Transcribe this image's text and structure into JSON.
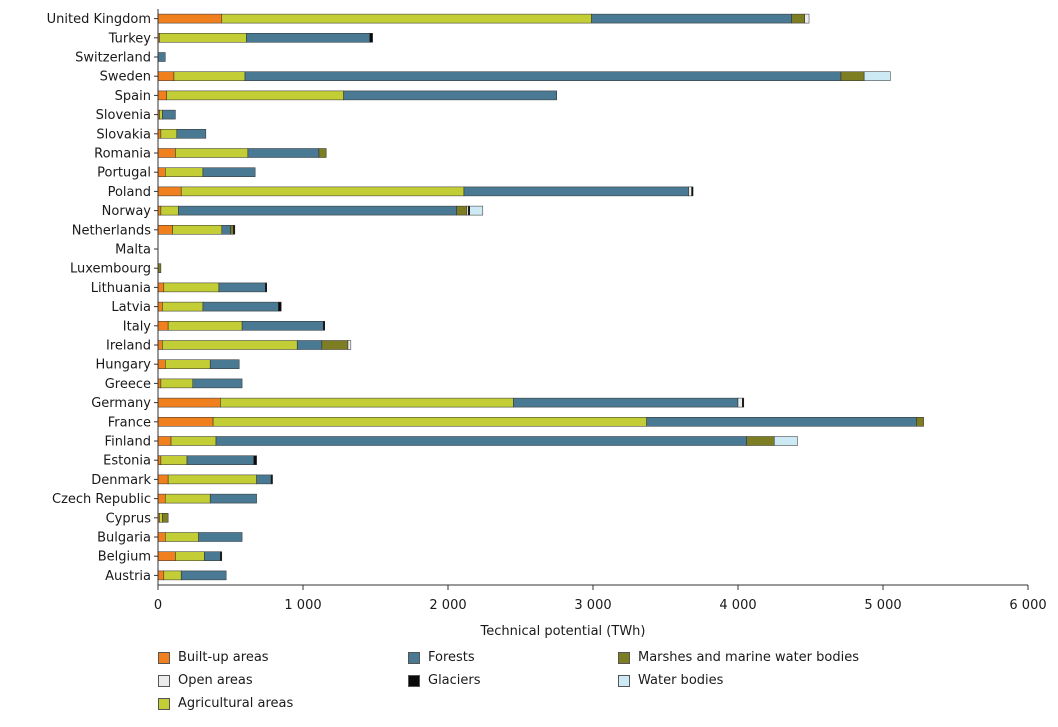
{
  "chart_data": {
    "type": "bar",
    "orientation": "horizontal",
    "stacked": true,
    "title": "",
    "xlabel": "Technical potential (TWh)",
    "ylabel": "",
    "xlim": [
      0,
      6000
    ],
    "xticks": [
      0,
      1000,
      2000,
      3000,
      4000,
      5000,
      6000
    ],
    "xtick_labels": [
      "0",
      "1 000",
      "2 000",
      "3 000",
      "4 000",
      "5 000",
      "6 000"
    ],
    "grid": false,
    "legend_position": "bottom",
    "categories": [
      "United Kingdom",
      "Turkey",
      "Switzerland",
      "Sweden",
      "Spain",
      "Slovenia",
      "Slovakia",
      "Romania",
      "Portugal",
      "Poland",
      "Norway",
      "Netherlands",
      "Malta",
      "Luxembourg",
      "Lithuania",
      "Latvia",
      "Italy",
      "Ireland",
      "Hungary",
      "Greece",
      "Germany",
      "France",
      "Finland",
      "Estonia",
      "Denmark",
      "Czech Republic",
      "Cyprus",
      "Bulgaria",
      "Belgium",
      "Austria"
    ],
    "series": [
      {
        "name": "Built-up areas",
        "color": "#f07f1d",
        "values": [
          440,
          10,
          0,
          110,
          60,
          10,
          20,
          120,
          50,
          160,
          20,
          100,
          0,
          0,
          40,
          30,
          70,
          30,
          50,
          20,
          430,
          380,
          90,
          20,
          70,
          50,
          10,
          50,
          120,
          40
        ]
      },
      {
        "name": "Agricultural areas",
        "color": "#c3cd35",
        "values": [
          2550,
          600,
          0,
          490,
          1220,
          20,
          110,
          500,
          260,
          1950,
          120,
          340,
          0,
          0,
          380,
          280,
          510,
          930,
          310,
          220,
          2020,
          2990,
          310,
          180,
          610,
          310,
          20,
          230,
          200,
          120
        ]
      },
      {
        "name": "Forests",
        "color": "#4a7a93",
        "values": [
          1380,
          850,
          50,
          4110,
          1470,
          90,
          200,
          490,
          360,
          1550,
          1920,
          60,
          0,
          0,
          320,
          520,
          560,
          170,
          200,
          340,
          1550,
          1860,
          3660,
          460,
          100,
          320,
          0,
          300,
          110,
          310
        ]
      },
      {
        "name": "Marshes and marine water bodies",
        "color": "#7d7d24",
        "values": [
          90,
          0,
          0,
          160,
          0,
          0,
          0,
          50,
          0,
          0,
          70,
          20,
          0,
          20,
          0,
          0,
          0,
          180,
          0,
          0,
          0,
          50,
          190,
          0,
          0,
          0,
          40,
          0,
          0,
          0
        ]
      },
      {
        "name": "Open areas",
        "color": "#ececec",
        "values": [
          30,
          0,
          0,
          0,
          0,
          0,
          0,
          0,
          0,
          20,
          10,
          0,
          0,
          0,
          0,
          0,
          0,
          20,
          0,
          0,
          30,
          0,
          0,
          0,
          0,
          0,
          0,
          0,
          0,
          0
        ]
      },
      {
        "name": "Glaciers",
        "color": "#0a0a0a",
        "values": [
          0,
          20,
          0,
          0,
          0,
          0,
          0,
          0,
          0,
          10,
          10,
          10,
          0,
          0,
          10,
          20,
          10,
          0,
          0,
          0,
          10,
          0,
          0,
          20,
          10,
          0,
          0,
          0,
          10,
          0
        ]
      },
      {
        "name": "Water bodies",
        "color": "#cde9f3",
        "values": [
          0,
          0,
          0,
          180,
          0,
          0,
          0,
          0,
          0,
          0,
          90,
          0,
          0,
          0,
          0,
          0,
          0,
          0,
          0,
          0,
          0,
          0,
          160,
          0,
          0,
          0,
          0,
          0,
          0,
          0
        ]
      }
    ],
    "legend": [
      {
        "name": "Built-up areas",
        "color": "#f07f1d"
      },
      {
        "name": "Forests",
        "color": "#4a7a93"
      },
      {
        "name": "Marshes and marine water bodies",
        "color": "#7d7d24"
      },
      {
        "name": "Open areas",
        "color": "#ececec"
      },
      {
        "name": "Glaciers",
        "color": "#0a0a0a"
      },
      {
        "name": "Water bodies",
        "color": "#cde9f3"
      },
      {
        "name": "Agricultural areas",
        "color": "#c3cd35"
      }
    ]
  }
}
